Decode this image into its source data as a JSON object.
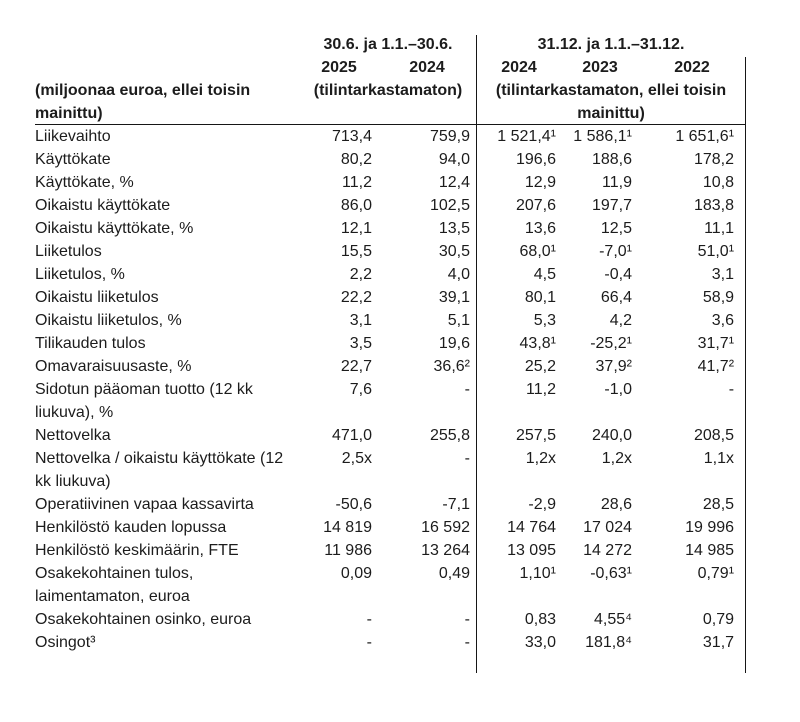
{
  "document": {
    "unit_note": "(miljoonaa euroa, ellei toisin\nmainittu)",
    "groups": [
      {
        "title": "30.6. ja 1.1.–30.6.",
        "years": [
          "2025",
          "2024"
        ],
        "note": "(tilintarkastamaton)"
      },
      {
        "title": "31.12. ja 1.1.–31.12.",
        "years": [
          "2024",
          "2023",
          "2022"
        ],
        "note": "(tilintarkastamaton, ellei toisin\nmainittu)"
      }
    ],
    "rows": [
      {
        "label": "Liikevaihto",
        "values": [
          "713,4",
          "759,9",
          "1 521,4¹",
          "1 586,1¹",
          "1 651,6¹"
        ]
      },
      {
        "label": "Käyttökate",
        "values": [
          "80,2",
          "94,0",
          "196,6",
          "188,6",
          "178,2"
        ]
      },
      {
        "label": "Käyttökate, %",
        "values": [
          "11,2",
          "12,4",
          "12,9",
          "11,9",
          "10,8"
        ]
      },
      {
        "label": "Oikaistu käyttökate",
        "values": [
          "86,0",
          "102,5",
          "207,6",
          "197,7",
          "183,8"
        ]
      },
      {
        "label": "Oikaistu käyttökate, %",
        "values": [
          "12,1",
          "13,5",
          "13,6",
          "12,5",
          "11,1"
        ]
      },
      {
        "label": "Liiketulos",
        "values": [
          "15,5",
          "30,5",
          "68,0¹",
          "-7,0¹",
          "51,0¹"
        ]
      },
      {
        "label": "Liiketulos, %",
        "values": [
          "2,2",
          "4,0",
          "4,5",
          "-0,4",
          "3,1"
        ]
      },
      {
        "label": "Oikaistu liiketulos",
        "values": [
          "22,2",
          "39,1",
          "80,1",
          "66,4",
          "58,9"
        ]
      },
      {
        "label": "Oikaistu liiketulos, %",
        "values": [
          "3,1",
          "5,1",
          "5,3",
          "4,2",
          "3,6"
        ]
      },
      {
        "label": "Tilikauden tulos",
        "values": [
          "3,5",
          "19,6",
          "43,8¹",
          "-25,2¹",
          "31,7¹"
        ]
      },
      {
        "label": "Omavaraisuusaste, %",
        "values": [
          "22,7",
          "36,6²",
          "25,2",
          "37,9²",
          "41,7²"
        ]
      },
      {
        "label": "Sidotun pääoman tuotto (12 kk\nliukuva), %",
        "values": [
          "7,6",
          "-",
          "11,2",
          "-1,0",
          "-"
        ]
      },
      {
        "label": "Nettovelka",
        "values": [
          "471,0",
          "255,8",
          "257,5",
          "240,0",
          "208,5"
        ]
      },
      {
        "label": "Nettovelka / oikaistu käyttökate (12\nkk liukuva)",
        "values": [
          "2,5x",
          "-",
          "1,2x",
          "1,2x",
          "1,1x"
        ]
      },
      {
        "label": "Operatiivinen vapaa kassavirta",
        "values": [
          "-50,6",
          "-7,1",
          "-2,9",
          "28,6",
          "28,5"
        ]
      },
      {
        "label": "Henkilöstö kauden lopussa",
        "values": [
          "14 819",
          "16 592",
          "14 764",
          "17 024",
          "19 996"
        ]
      },
      {
        "label": "Henkilöstö keskimäärin, FTE",
        "values": [
          "11 986",
          "13 264",
          "13 095",
          "14 272",
          "14 985"
        ]
      },
      {
        "label": "Osakekohtainen tulos,\nlaimentamaton, euroa",
        "values": [
          "0,09",
          "0,49",
          "1,10¹",
          "-0,63¹",
          "0,79¹"
        ]
      },
      {
        "label": "Osakekohtainen osinko, euroa",
        "values": [
          "-",
          "-",
          "0,83",
          "4,55⁴",
          "0,79"
        ]
      },
      {
        "label": "Osingot³",
        "values": [
          "-",
          "-",
          "33,0",
          "181,8⁴",
          "31,7"
        ]
      }
    ],
    "colors": {
      "text": "#1c1c1c",
      "line": "#161616",
      "background": "#ffffff"
    }
  }
}
